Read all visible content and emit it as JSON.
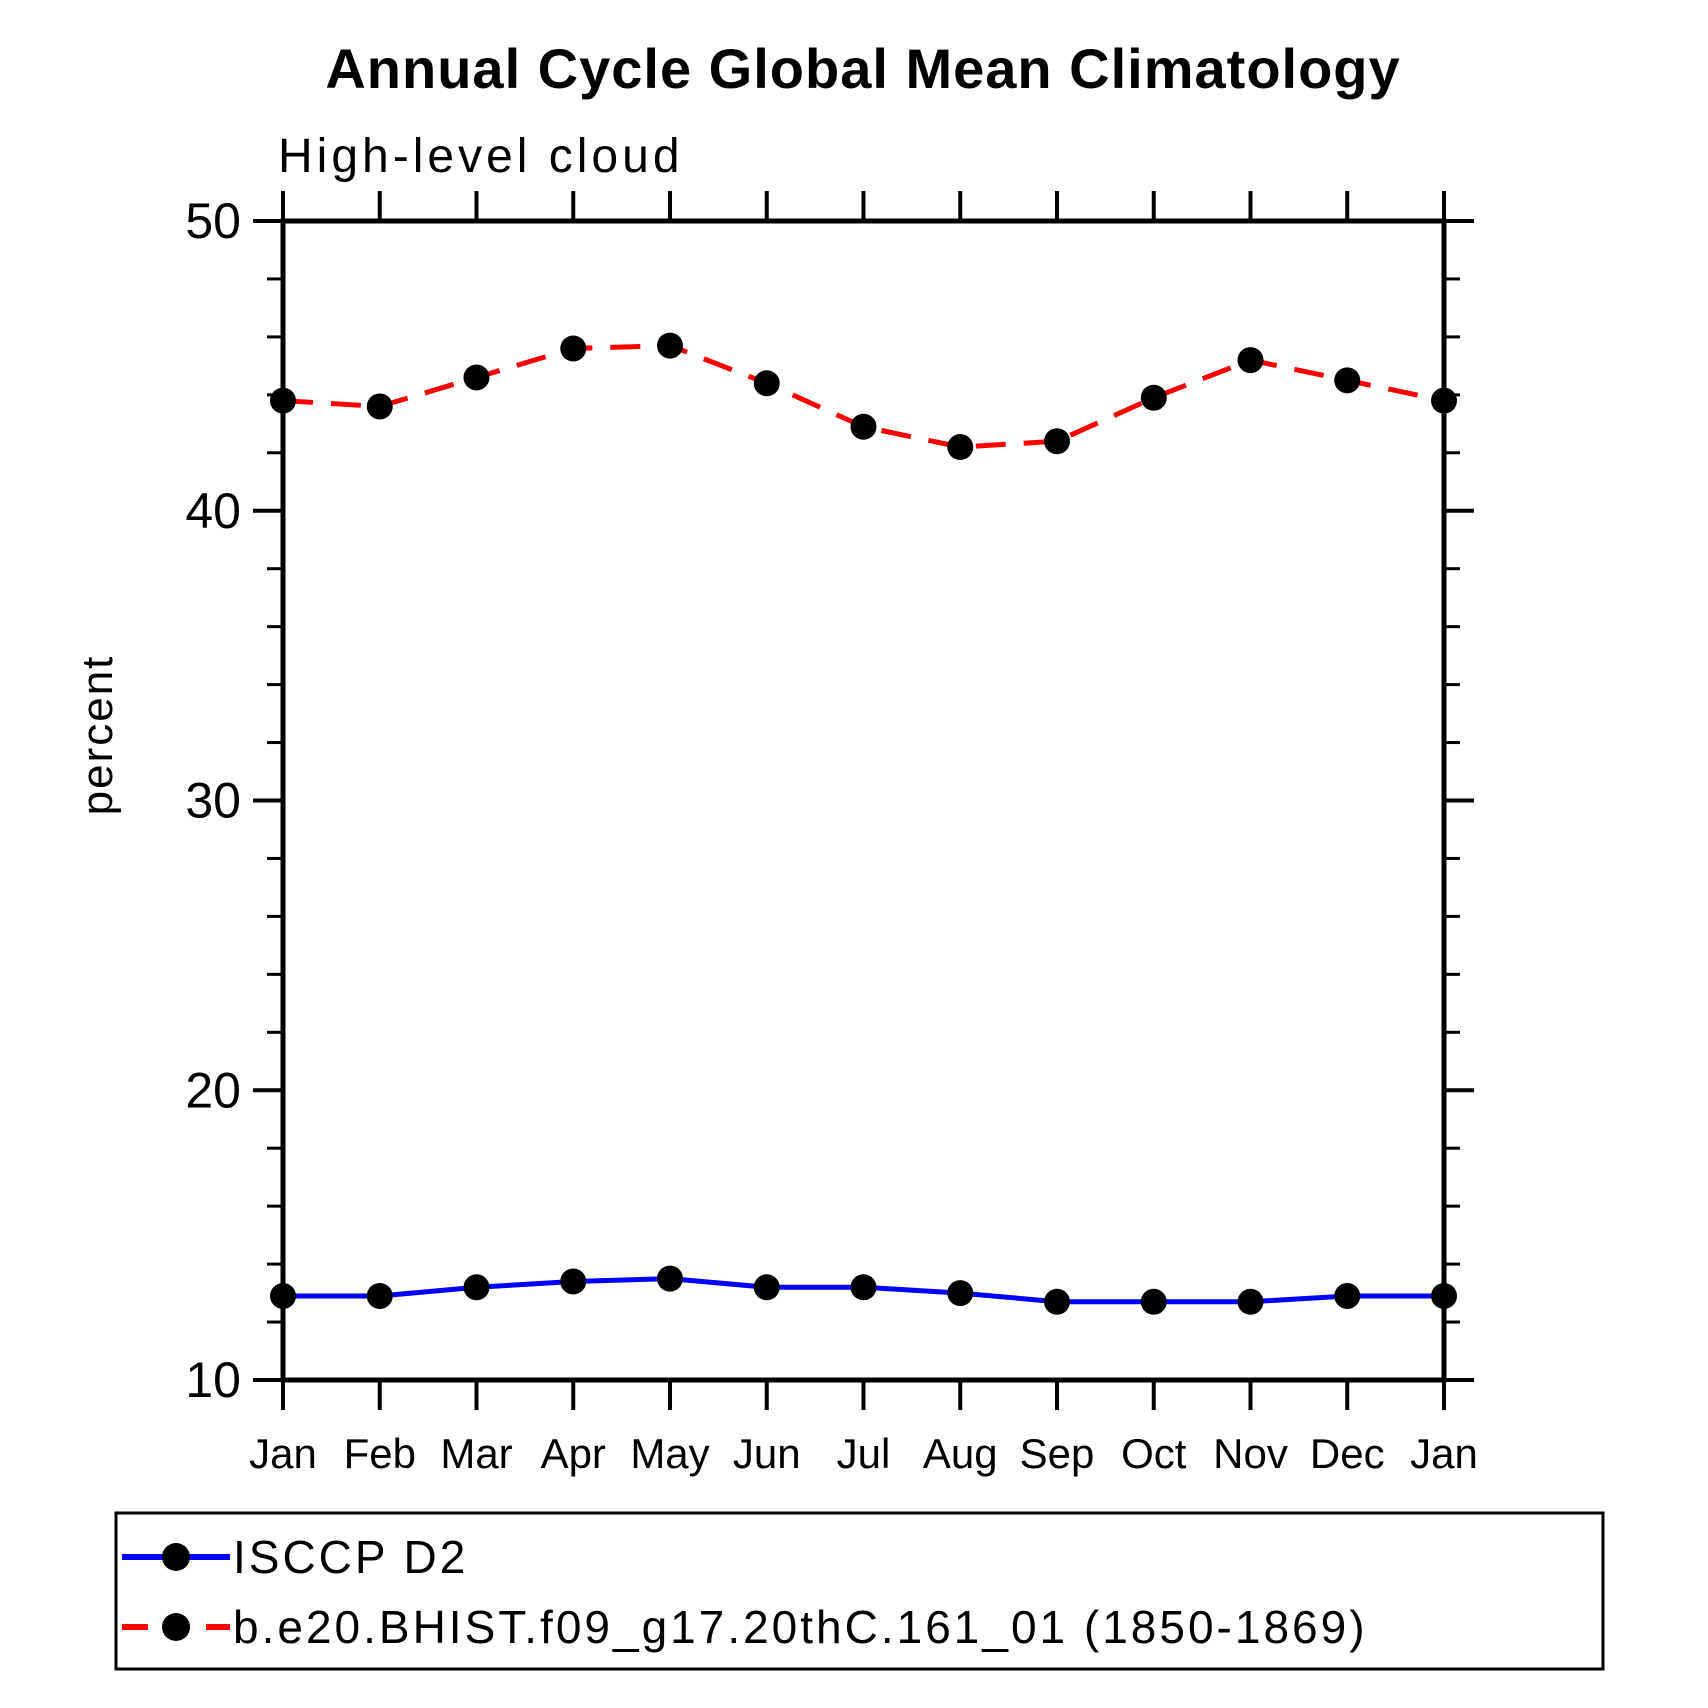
{
  "page": {
    "background_color": "#ffffff",
    "axis_color": "#000000",
    "text_color": "#000000"
  },
  "chart_data": {
    "type": "line",
    "title": "Annual Cycle Global Mean Climatology",
    "subtitle": "High-level cloud",
    "xlabel": "",
    "ylabel": "percent",
    "categories": [
      "Jan",
      "Feb",
      "Mar",
      "Apr",
      "May",
      "Jun",
      "Jul",
      "Aug",
      "Sep",
      "Oct",
      "Nov",
      "Dec",
      "Jan"
    ],
    "ylim": [
      10,
      50
    ],
    "ytick_major": [
      10,
      20,
      30,
      40,
      50
    ],
    "ytick_minor_step": 2,
    "grid": false,
    "legend_position": "bottom-left-box",
    "marker": "filled-circle",
    "series": [
      {
        "name": "ISCCP D2",
        "color": "#0000ff",
        "line_style": "solid",
        "marker_color": "#000000",
        "values": [
          12.9,
          12.9,
          13.2,
          13.4,
          13.5,
          13.2,
          13.2,
          13.0,
          12.7,
          12.7,
          12.7,
          12.9,
          12.9
        ]
      },
      {
        "name": "b.e20.BHIST.f09_g17.20thC.161_01 (1850-1869)",
        "color": "#ff0000",
        "line_style": "dashed",
        "marker_color": "#000000",
        "values": [
          43.8,
          43.6,
          44.6,
          45.6,
          45.7,
          44.4,
          42.9,
          42.2,
          42.4,
          43.9,
          45.2,
          44.5,
          43.8
        ]
      }
    ]
  }
}
